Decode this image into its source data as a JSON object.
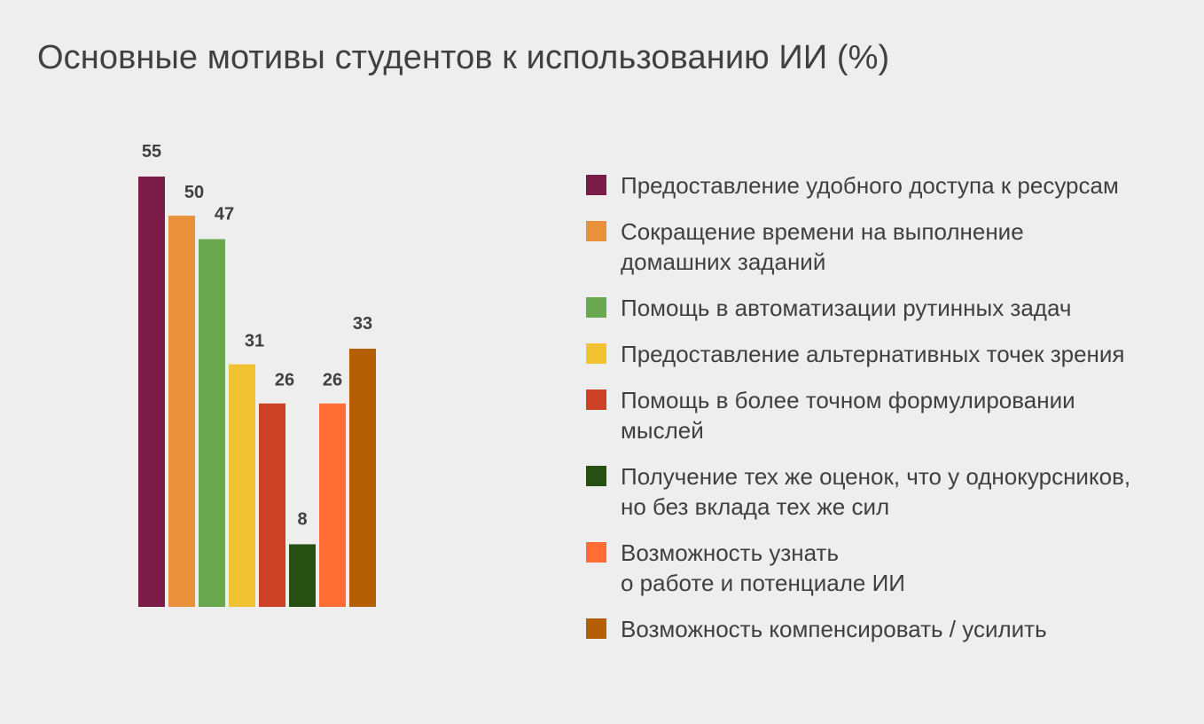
{
  "chart_data": {
    "type": "bar",
    "title": "Основные мотивы студентов к использованию ИИ (%)",
    "ylim": [
      0,
      55
    ],
    "grid": false,
    "legend_position": "right",
    "categories": [
      "Предоставление удобного доступа к ресурсам",
      "Сокращение времени на выполнение\nдомашних заданий",
      "Помощь в автоматизации рутинных задач",
      "Предоставление альтернативных точек зрения",
      "Помощь в более точном формулировании\nмыслей",
      "Получение тех же оценок, что у однокурсников,\nно без вклада тех же сил",
      "Возможность узнать\nо работе и потенциале ИИ",
      "Возможность компенсировать / усилить"
    ],
    "values": [
      55,
      50,
      47,
      31,
      26,
      8,
      26,
      33
    ],
    "colors": [
      "#7b1c48",
      "#e8913a",
      "#6aa84f",
      "#f1c232",
      "#cc4125",
      "#274e13",
      "#ff6d35",
      "#b45f06"
    ],
    "data_labels": [
      "55",
      "50",
      "47",
      "31",
      "26",
      "8",
      "26",
      "33"
    ]
  }
}
